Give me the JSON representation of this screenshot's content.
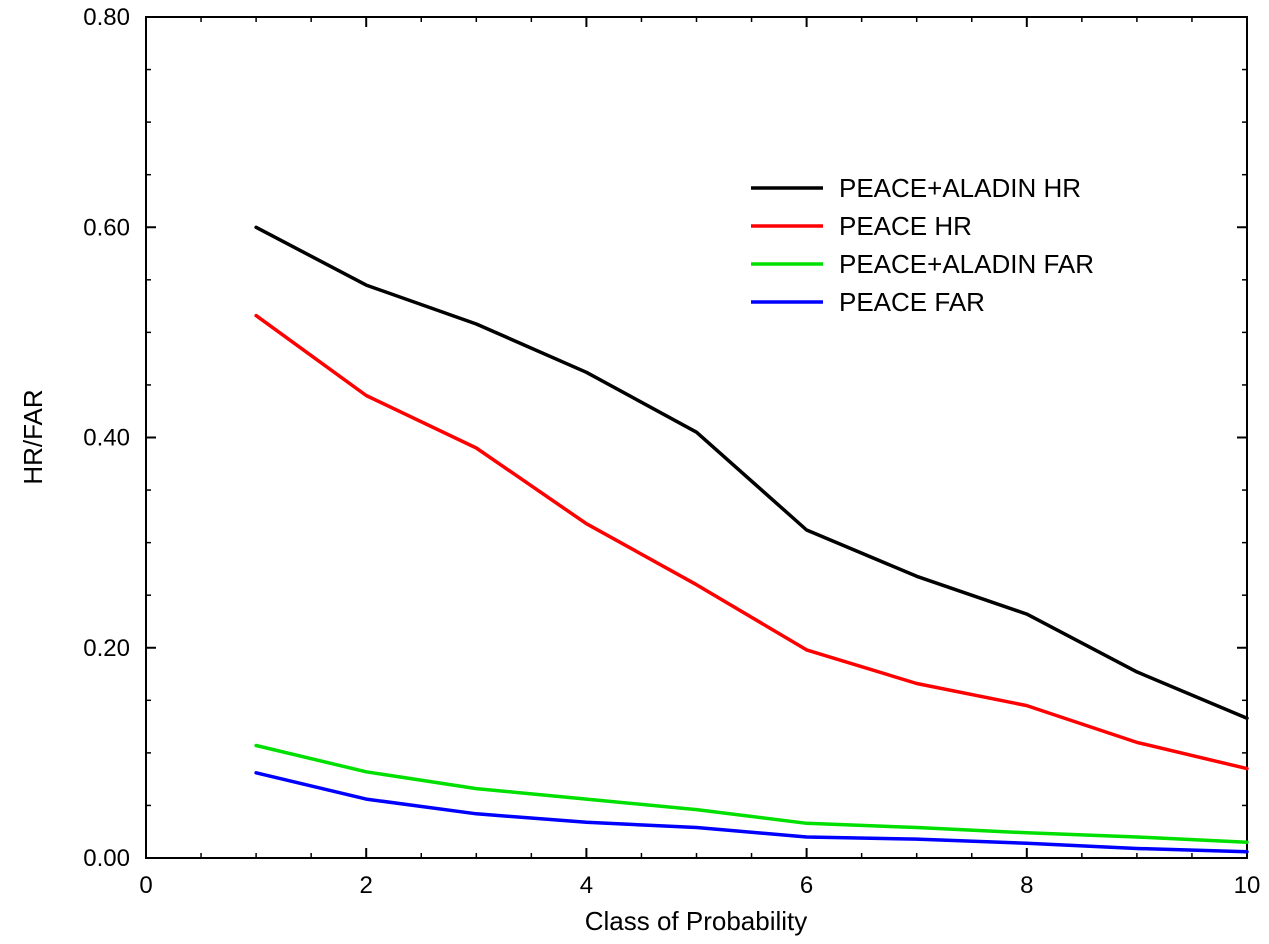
{
  "chart_data": {
    "type": "line",
    "title": "",
    "xlabel": "Class of Probability",
    "ylabel": "HR/FAR",
    "xlim": [
      0,
      10
    ],
    "ylim": [
      0,
      0.8
    ],
    "x_ticks": [
      0,
      2,
      4,
      6,
      8,
      10
    ],
    "x_tick_labels": [
      "0",
      "2",
      "4",
      "6",
      "8",
      "10"
    ],
    "y_ticks": [
      0,
      0.2,
      0.4,
      0.6,
      0.8
    ],
    "y_tick_labels": [
      "0.00",
      "0.20",
      "0.40",
      "0.60",
      "0.80"
    ],
    "grid": false,
    "legend_position": "top-right",
    "x": [
      1,
      2,
      3,
      4,
      5,
      6,
      7,
      8,
      9,
      10
    ],
    "series": [
      {
        "name": "PEACE+ALADIN HR",
        "color": "#000000",
        "values": [
          0.6,
          0.545,
          0.508,
          0.462,
          0.405,
          0.312,
          0.268,
          0.232,
          0.177,
          0.133
        ]
      },
      {
        "name": "PEACE HR",
        "color": "#ff0000",
        "values": [
          0.516,
          0.44,
          0.39,
          0.318,
          0.26,
          0.198,
          0.166,
          0.145,
          0.11,
          0.085
        ]
      },
      {
        "name": "PEACE+ALADIN FAR",
        "color": "#00e000",
        "values": [
          0.107,
          0.082,
          0.066,
          0.056,
          0.046,
          0.033,
          0.029,
          0.024,
          0.02,
          0.015
        ]
      },
      {
        "name": "PEACE FAR",
        "color": "#0000ff",
        "values": [
          0.081,
          0.056,
          0.042,
          0.034,
          0.029,
          0.02,
          0.018,
          0.014,
          0.009,
          0.006
        ]
      }
    ]
  }
}
